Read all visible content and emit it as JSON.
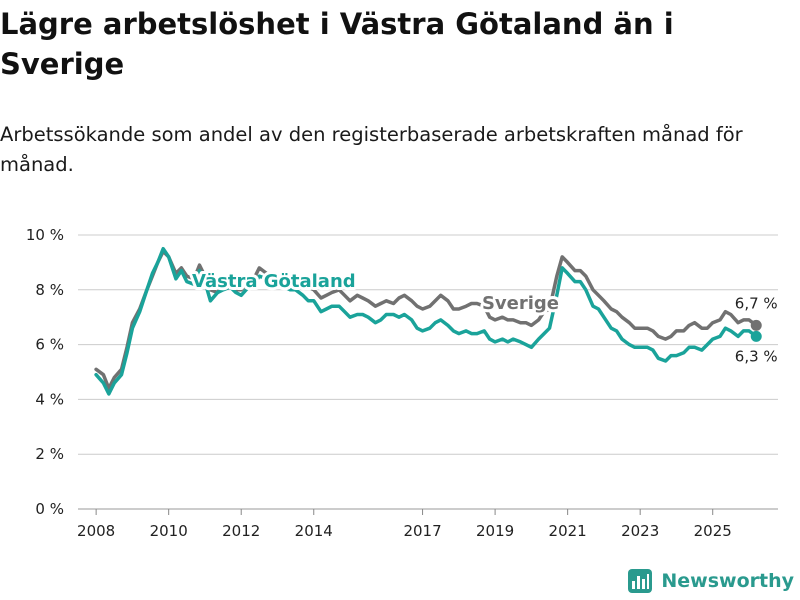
{
  "header": {
    "title": "Lägre arbetslöshet i Västra Götaland än i Sverige",
    "subtitle": "Arbetssökande som andel av den registerbaserade arbetskraften månad för månad."
  },
  "brand": {
    "name": "Newsworthy"
  },
  "colors": {
    "sverige": "#717171",
    "vg": "#1aa39a",
    "grid": "#cccccc",
    "brand": "#2a9a8e"
  },
  "chart_data": {
    "type": "line",
    "title": "Lägre arbetslöshet i Västra Götaland än i Sverige",
    "subtitle": "Arbetssökande som andel av den registerbaserade arbetskraften månad för månad.",
    "xlabel": "",
    "ylabel": "",
    "xlim": [
      2007.5,
      2026.8
    ],
    "ylim": [
      0,
      10
    ],
    "yticks": [
      0,
      2,
      4,
      6,
      8,
      10
    ],
    "ytick_labels": [
      "0 %",
      "2 %",
      "4 %",
      "6 %",
      "8 %",
      "10 %"
    ],
    "xticks": [
      2008,
      2010,
      2012,
      2014,
      2017,
      2019,
      2021,
      2023,
      2025
    ],
    "xtick_labels": [
      "2008",
      "2010",
      "2012",
      "2014",
      "2017",
      "2019",
      "2021",
      "2023",
      "2025"
    ],
    "grid": true,
    "series": [
      {
        "name": "Sverige",
        "color": "#717171",
        "x": [
          2008.0,
          2008.2,
          2008.35,
          2008.5,
          2008.7,
          2008.85,
          2009.0,
          2009.2,
          2009.4,
          2009.55,
          2009.7,
          2009.85,
          2010.0,
          2010.2,
          2010.35,
          2010.5,
          2010.7,
          2010.85,
          2011.0,
          2011.15,
          2011.35,
          2011.5,
          2011.7,
          2011.85,
          2012.0,
          2012.2,
          2012.35,
          2012.5,
          2012.7,
          2012.85,
          2013.0,
          2013.2,
          2013.35,
          2013.5,
          2013.7,
          2013.85,
          2014.0,
          2014.2,
          2014.35,
          2014.5,
          2014.7,
          2014.85,
          2015.0,
          2015.2,
          2015.35,
          2015.5,
          2015.7,
          2015.85,
          2016.0,
          2016.2,
          2016.35,
          2016.5,
          2016.7,
          2016.85,
          2017.0,
          2017.2,
          2017.35,
          2017.5,
          2017.7,
          2017.85,
          2018.0,
          2018.2,
          2018.35,
          2018.5,
          2018.7,
          2018.85,
          2019.0,
          2019.2,
          2019.35,
          2019.5,
          2019.7,
          2019.85,
          2020.0,
          2020.2,
          2020.35,
          2020.5,
          2020.7,
          2020.85,
          2021.0,
          2021.2,
          2021.35,
          2021.5,
          2021.7,
          2021.85,
          2022.0,
          2022.2,
          2022.35,
          2022.5,
          2022.7,
          2022.85,
          2023.0,
          2023.2,
          2023.35,
          2023.5,
          2023.7,
          2023.85,
          2024.0,
          2024.2,
          2024.35,
          2024.5,
          2024.7,
          2024.85,
          2025.0,
          2025.2,
          2025.35,
          2025.5,
          2025.7,
          2025.85,
          2026.0,
          2026.2
        ],
        "values": [
          5.1,
          4.9,
          4.4,
          4.8,
          5.1,
          5.9,
          6.8,
          7.3,
          8.0,
          8.5,
          9.0,
          9.4,
          9.2,
          8.6,
          8.8,
          8.5,
          8.4,
          8.9,
          8.5,
          8.0,
          7.9,
          8.2,
          8.3,
          8.0,
          8.0,
          8.3,
          8.4,
          8.8,
          8.6,
          8.2,
          8.5,
          8.6,
          8.4,
          8.3,
          8.3,
          8.1,
          8.0,
          7.7,
          7.8,
          7.9,
          8.0,
          7.8,
          7.6,
          7.8,
          7.7,
          7.6,
          7.4,
          7.5,
          7.6,
          7.5,
          7.7,
          7.8,
          7.6,
          7.4,
          7.3,
          7.4,
          7.6,
          7.8,
          7.6,
          7.3,
          7.3,
          7.4,
          7.5,
          7.5,
          7.4,
          7.0,
          6.9,
          7.0,
          6.9,
          6.9,
          6.8,
          6.8,
          6.7,
          6.9,
          7.2,
          7.3,
          8.5,
          9.2,
          9.0,
          8.7,
          8.7,
          8.5,
          8.0,
          7.8,
          7.6,
          7.3,
          7.2,
          7.0,
          6.8,
          6.6,
          6.6,
          6.6,
          6.5,
          6.3,
          6.2,
          6.3,
          6.5,
          6.5,
          6.7,
          6.8,
          6.6,
          6.6,
          6.8,
          6.9,
          7.2,
          7.1,
          6.8,
          6.9,
          6.9,
          6.7
        ],
        "end_label": "6,7 %",
        "label": "Sverige",
        "label_pos": [
          2019.7,
          7.3
        ]
      },
      {
        "name": "Västra Götaland",
        "color": "#1aa39a",
        "x": [
          2008.0,
          2008.2,
          2008.35,
          2008.5,
          2008.7,
          2008.85,
          2009.0,
          2009.2,
          2009.4,
          2009.55,
          2009.7,
          2009.85,
          2010.0,
          2010.2,
          2010.35,
          2010.5,
          2010.7,
          2010.85,
          2011.0,
          2011.15,
          2011.35,
          2011.5,
          2011.7,
          2011.85,
          2012.0,
          2012.2,
          2012.35,
          2012.5,
          2012.7,
          2012.85,
          2013.0,
          2013.2,
          2013.35,
          2013.5,
          2013.7,
          2013.85,
          2014.0,
          2014.2,
          2014.35,
          2014.5,
          2014.7,
          2014.85,
          2015.0,
          2015.2,
          2015.35,
          2015.5,
          2015.7,
          2015.85,
          2016.0,
          2016.2,
          2016.35,
          2016.5,
          2016.7,
          2016.85,
          2017.0,
          2017.2,
          2017.35,
          2017.5,
          2017.7,
          2017.85,
          2018.0,
          2018.2,
          2018.35,
          2018.5,
          2018.7,
          2018.85,
          2019.0,
          2019.2,
          2019.35,
          2019.5,
          2019.7,
          2019.85,
          2020.0,
          2020.2,
          2020.35,
          2020.5,
          2020.7,
          2020.85,
          2021.0,
          2021.2,
          2021.35,
          2021.5,
          2021.7,
          2021.85,
          2022.0,
          2022.2,
          2022.35,
          2022.5,
          2022.7,
          2022.85,
          2023.0,
          2023.2,
          2023.35,
          2023.5,
          2023.7,
          2023.85,
          2024.0,
          2024.2,
          2024.35,
          2024.5,
          2024.7,
          2024.85,
          2025.0,
          2025.2,
          2025.35,
          2025.5,
          2025.7,
          2025.85,
          2026.0,
          2026.2
        ],
        "values": [
          4.9,
          4.6,
          4.2,
          4.6,
          4.9,
          5.7,
          6.6,
          7.2,
          8.0,
          8.6,
          9.0,
          9.5,
          9.2,
          8.4,
          8.7,
          8.3,
          8.2,
          8.7,
          8.3,
          7.6,
          7.9,
          8.0,
          8.1,
          7.9,
          7.8,
          8.1,
          8.2,
          8.5,
          8.4,
          8.1,
          8.2,
          8.1,
          8.0,
          8.0,
          7.8,
          7.6,
          7.6,
          7.2,
          7.3,
          7.4,
          7.4,
          7.2,
          7.0,
          7.1,
          7.1,
          7.0,
          6.8,
          6.9,
          7.1,
          7.1,
          7.0,
          7.1,
          6.9,
          6.6,
          6.5,
          6.6,
          6.8,
          6.9,
          6.7,
          6.5,
          6.4,
          6.5,
          6.4,
          6.4,
          6.5,
          6.2,
          6.1,
          6.2,
          6.1,
          6.2,
          6.1,
          6.0,
          5.9,
          6.2,
          6.4,
          6.6,
          7.8,
          8.8,
          8.6,
          8.3,
          8.3,
          8.0,
          7.4,
          7.3,
          7.0,
          6.6,
          6.5,
          6.2,
          6.0,
          5.9,
          5.9,
          5.9,
          5.8,
          5.5,
          5.4,
          5.6,
          5.6,
          5.7,
          5.9,
          5.9,
          5.8,
          6.0,
          6.2,
          6.3,
          6.6,
          6.5,
          6.3,
          6.5,
          6.5,
          6.3
        ],
        "end_label": "6,3 %",
        "label": "Västra Götaland",
        "label_pos": [
          2012.9,
          8.1
        ]
      }
    ]
  }
}
